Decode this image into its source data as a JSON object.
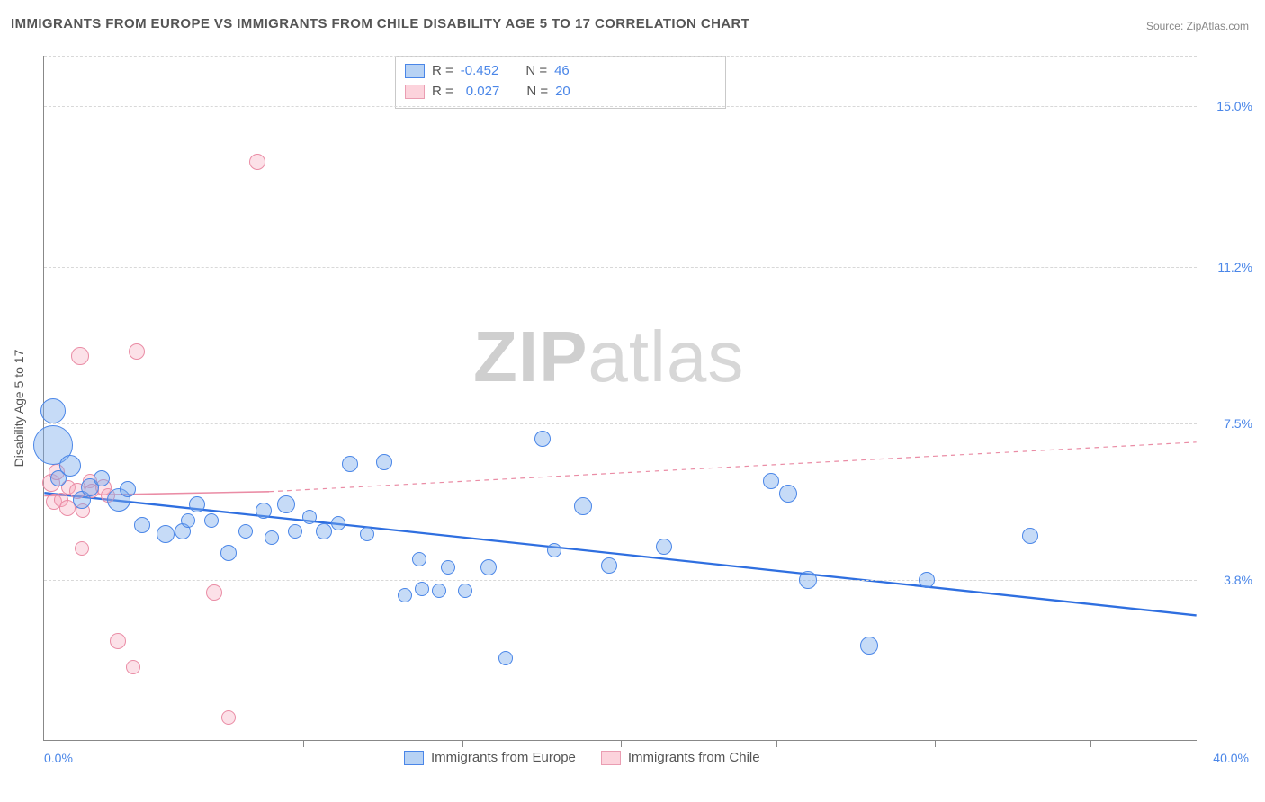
{
  "title": "IMMIGRANTS FROM EUROPE VS IMMIGRANTS FROM CHILE DISABILITY AGE 5 TO 17 CORRELATION CHART",
  "source_label": "Source:",
  "source_name": "ZipAtlas.com",
  "ylabel": "Disability Age 5 to 17",
  "watermark_bold": "ZIP",
  "watermark_rest": "atlas",
  "chart": {
    "type": "scatter",
    "xlim": [
      0,
      40
    ],
    "ylim": [
      0,
      16.2
    ],
    "x_min_label": "0.0%",
    "x_max_label": "40.0%",
    "ygrid": [
      {
        "v": 3.8,
        "label": "3.8%"
      },
      {
        "v": 7.5,
        "label": "7.5%"
      },
      {
        "v": 11.2,
        "label": "11.2%"
      },
      {
        "v": 15.0,
        "label": "15.0%"
      }
    ],
    "xtick_positions": [
      3.6,
      9.0,
      14.5,
      20.0,
      25.4,
      30.9,
      36.3
    ],
    "background_color": "#ffffff",
    "grid_color": "#d8d8d8",
    "axis_color": "#888888",
    "label_color_blue": "#4a86e8",
    "label_fontsize": 14,
    "title_fontsize": 15
  },
  "legend_stats": {
    "rows": [
      {
        "r": "-0.452",
        "n": "46",
        "swatch": "blue"
      },
      {
        "r": "0.027",
        "n": "20",
        "swatch": "pink"
      }
    ],
    "r_label": "R =",
    "n_label": "N ="
  },
  "bottom_legend": {
    "items": [
      {
        "label": "Immigrants from Europe",
        "swatch": "blue"
      },
      {
        "label": "Immigrants from Chile",
        "swatch": "pink"
      }
    ]
  },
  "series": {
    "blue": {
      "color_fill": "rgba(120,170,235,0.42)",
      "color_stroke": "#4a86e8",
      "trend": {
        "x1": 0,
        "y1": 5.85,
        "x2": 40,
        "y2": 2.95,
        "dash": "none",
        "width": 2.3,
        "color": "#2f6fe0"
      },
      "points": [
        {
          "x": 0.3,
          "y": 7.8,
          "r": 14
        },
        {
          "x": 0.3,
          "y": 7.0,
          "r": 22
        },
        {
          "x": 0.5,
          "y": 6.2,
          "r": 9
        },
        {
          "x": 0.9,
          "y": 6.5,
          "r": 12
        },
        {
          "x": 1.3,
          "y": 5.7,
          "r": 10
        },
        {
          "x": 1.6,
          "y": 6.0,
          "r": 10
        },
        {
          "x": 2.0,
          "y": 6.2,
          "r": 9
        },
        {
          "x": 2.6,
          "y": 5.7,
          "r": 13
        },
        {
          "x": 2.9,
          "y": 5.95,
          "r": 9
        },
        {
          "x": 3.4,
          "y": 5.1,
          "r": 9
        },
        {
          "x": 4.2,
          "y": 4.9,
          "r": 10
        },
        {
          "x": 4.8,
          "y": 4.95,
          "r": 9
        },
        {
          "x": 5.0,
          "y": 5.2,
          "r": 8
        },
        {
          "x": 5.3,
          "y": 5.6,
          "r": 9
        },
        {
          "x": 5.8,
          "y": 5.2,
          "r": 8
        },
        {
          "x": 6.4,
          "y": 4.45,
          "r": 9
        },
        {
          "x": 7.0,
          "y": 4.95,
          "r": 8
        },
        {
          "x": 7.6,
          "y": 5.45,
          "r": 9
        },
        {
          "x": 7.9,
          "y": 4.8,
          "r": 8
        },
        {
          "x": 8.4,
          "y": 5.6,
          "r": 10
        },
        {
          "x": 8.7,
          "y": 4.95,
          "r": 8
        },
        {
          "x": 9.2,
          "y": 5.3,
          "r": 8
        },
        {
          "x": 9.7,
          "y": 4.95,
          "r": 9
        },
        {
          "x": 10.2,
          "y": 5.15,
          "r": 8
        },
        {
          "x": 10.6,
          "y": 6.55,
          "r": 9
        },
        {
          "x": 11.2,
          "y": 4.9,
          "r": 8
        },
        {
          "x": 11.8,
          "y": 6.6,
          "r": 9
        },
        {
          "x": 12.5,
          "y": 3.45,
          "r": 8
        },
        {
          "x": 13.0,
          "y": 4.3,
          "r": 8
        },
        {
          "x": 13.1,
          "y": 3.6,
          "r": 8
        },
        {
          "x": 13.7,
          "y": 3.55,
          "r": 8
        },
        {
          "x": 14.0,
          "y": 4.1,
          "r": 8
        },
        {
          "x": 14.6,
          "y": 3.55,
          "r": 8
        },
        {
          "x": 15.4,
          "y": 4.1,
          "r": 9
        },
        {
          "x": 16.0,
          "y": 1.95,
          "r": 8
        },
        {
          "x": 17.3,
          "y": 7.15,
          "r": 9
        },
        {
          "x": 17.7,
          "y": 4.5,
          "r": 8
        },
        {
          "x": 18.7,
          "y": 5.55,
          "r": 10
        },
        {
          "x": 19.6,
          "y": 4.15,
          "r": 9
        },
        {
          "x": 21.5,
          "y": 4.6,
          "r": 9
        },
        {
          "x": 25.2,
          "y": 6.15,
          "r": 9
        },
        {
          "x": 25.8,
          "y": 5.85,
          "r": 10
        },
        {
          "x": 26.5,
          "y": 3.8,
          "r": 10
        },
        {
          "x": 28.6,
          "y": 2.25,
          "r": 10
        },
        {
          "x": 30.6,
          "y": 3.8,
          "r": 9
        },
        {
          "x": 34.2,
          "y": 4.85,
          "r": 9
        }
      ]
    },
    "pink": {
      "color_fill": "rgba(245,170,190,0.35)",
      "color_stroke": "#ea8ca5",
      "trend_solid": {
        "x1": 0,
        "y1": 5.78,
        "x2": 7.8,
        "y2": 5.88,
        "dash": "none",
        "width": 1.6,
        "color": "#ea8ca5"
      },
      "trend_dash": {
        "x1": 7.8,
        "y1": 5.88,
        "x2": 40,
        "y2": 7.05,
        "dash": "5,5",
        "width": 1.2,
        "color": "#ea8ca5"
      },
      "points": [
        {
          "x": 0.25,
          "y": 6.1,
          "r": 10
        },
        {
          "x": 0.35,
          "y": 5.65,
          "r": 9
        },
        {
          "x": 0.45,
          "y": 6.35,
          "r": 9
        },
        {
          "x": 0.6,
          "y": 5.7,
          "r": 8
        },
        {
          "x": 0.8,
          "y": 5.5,
          "r": 9
        },
        {
          "x": 0.85,
          "y": 6.0,
          "r": 8
        },
        {
          "x": 1.15,
          "y": 5.9,
          "r": 9
        },
        {
          "x": 1.35,
          "y": 5.45,
          "r": 8
        },
        {
          "x": 1.25,
          "y": 9.1,
          "r": 10
        },
        {
          "x": 1.3,
          "y": 4.55,
          "r": 8
        },
        {
          "x": 1.6,
          "y": 6.15,
          "r": 8
        },
        {
          "x": 1.65,
          "y": 5.9,
          "r": 8
        },
        {
          "x": 2.05,
          "y": 6.0,
          "r": 9
        },
        {
          "x": 2.2,
          "y": 5.8,
          "r": 8
        },
        {
          "x": 2.55,
          "y": 2.35,
          "r": 9
        },
        {
          "x": 3.2,
          "y": 9.2,
          "r": 9
        },
        {
          "x": 3.1,
          "y": 1.75,
          "r": 8
        },
        {
          "x": 5.9,
          "y": 3.5,
          "r": 9
        },
        {
          "x": 6.4,
          "y": 0.55,
          "r": 8
        },
        {
          "x": 7.4,
          "y": 13.7,
          "r": 9
        }
      ]
    }
  }
}
